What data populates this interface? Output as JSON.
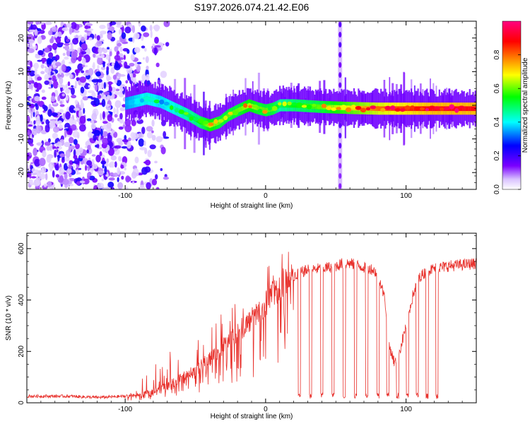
{
  "title": "S197.2026.074.21.42.E06",
  "colorbar": {
    "label": "Normalized spectral amplitude",
    "ticks": [
      "0.0",
      "0.2",
      "0.4",
      "0.6",
      "0.8"
    ],
    "tick_values": [
      0.0,
      0.2,
      0.4,
      0.6,
      0.8
    ],
    "range": [
      0,
      1
    ],
    "colors": [
      "#ffffff",
      "#d9c2ff",
      "#7a00ff",
      "#0000ff",
      "#00ffff",
      "#00ff00",
      "#ffff00",
      "#ff8000",
      "#ff0000",
      "#ff0080"
    ]
  },
  "chart_data": [
    {
      "type": "heatmap",
      "title": "S197.2026.074.21.42.E06",
      "xlabel": "Height of straight line (km)",
      "ylabel": "Frequency (Hz)",
      "xlim": [
        -170,
        150
      ],
      "ylim": [
        -25,
        25
      ],
      "xticks": [
        -100,
        0,
        100
      ],
      "xtick_labels": [
        "-100",
        "0",
        "100"
      ],
      "yticks": [
        -20,
        -10,
        0,
        10,
        20
      ],
      "ytick_labels": [
        "-20",
        "-10",
        "0",
        "10",
        "20"
      ],
      "ridge": {
        "x": [
          -100,
          -85,
          -75,
          -65,
          -55,
          -47,
          -40,
          -33,
          -27,
          -20,
          -12,
          -5,
          0,
          5,
          10,
          20,
          40,
          60,
          80,
          100,
          120,
          150
        ],
        "freq": [
          0.5,
          2,
          1,
          -1,
          -3,
          -5,
          -6,
          -5,
          -3,
          -1.5,
          0,
          -1,
          -1.5,
          -1,
          0,
          0,
          -0.5,
          -0.8,
          -1,
          -1,
          -1,
          -1
        ],
        "amplitude": [
          0.35,
          0.45,
          0.4,
          0.45,
          0.5,
          0.55,
          0.65,
          0.6,
          0.6,
          0.6,
          0.65,
          0.6,
          0.6,
          0.6,
          0.5,
          0.55,
          0.6,
          0.7,
          0.8,
          0.85,
          0.9,
          0.9
        ]
      },
      "noise_region_x": [
        -170,
        -70
      ],
      "spike_x": 53
    },
    {
      "type": "line",
      "xlabel": "Height of straight line (km)",
      "ylabel": "SNR (10 * v/v)",
      "xlim": [
        -170,
        150
      ],
      "ylim": [
        0,
        660
      ],
      "xticks": [
        -100,
        0,
        100
      ],
      "xtick_labels": [
        "-100",
        "0",
        "100"
      ],
      "yticks": [
        0,
        200,
        400,
        600
      ],
      "ytick_labels": [
        "0",
        "200",
        "400",
        "600"
      ],
      "series": [
        {
          "name": "SNR",
          "color": "#e8302b",
          "x": [
            -170,
            -140,
            -120,
            -100,
            -90,
            -80,
            -70,
            -60,
            -50,
            -40,
            -30,
            -20,
            -10,
            0,
            5,
            10,
            15,
            20,
            25,
            30,
            40,
            50,
            55,
            60,
            70,
            75,
            80,
            85,
            88,
            92,
            96,
            100,
            105,
            110,
            115,
            120,
            130,
            140,
            150
          ],
          "y": [
            25,
            25,
            20,
            25,
            30,
            40,
            60,
            90,
            120,
            170,
            220,
            270,
            320,
            380,
            420,
            440,
            470,
            490,
            505,
            515,
            520,
            530,
            540,
            540,
            525,
            520,
            500,
            400,
            220,
            150,
            210,
            300,
            420,
            490,
            510,
            520,
            530,
            535,
            540
          ]
        }
      ],
      "dropouts_x": [
        24,
        32,
        40,
        48,
        56,
        64,
        72,
        80,
        87,
        94,
        101,
        108,
        115,
        122
      ]
    }
  ]
}
